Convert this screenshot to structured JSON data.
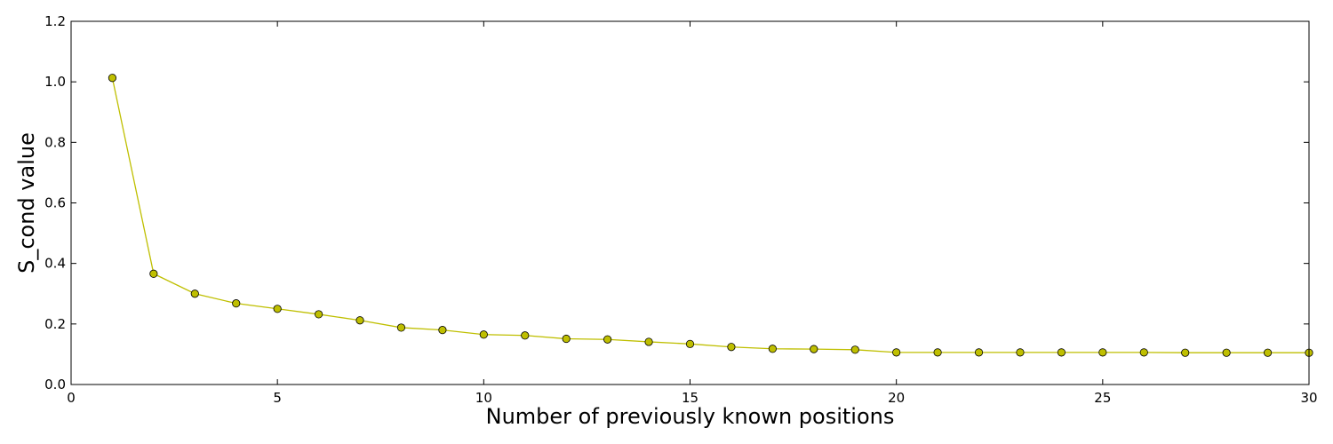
{
  "chart_data": {
    "type": "line",
    "title": "",
    "xlabel": "Number of previously known positions",
    "ylabel": "S_cond value",
    "xlim": [
      0,
      30
    ],
    "ylim": [
      0.0,
      1.2
    ],
    "x_ticks": [
      0,
      5,
      10,
      15,
      20,
      25,
      30
    ],
    "y_ticks": [
      0.0,
      0.2,
      0.4,
      0.6,
      0.8,
      1.0,
      1.2
    ],
    "x_tick_labels": [
      "0",
      "5",
      "10",
      "15",
      "20",
      "25",
      "30"
    ],
    "y_tick_labels": [
      "0.0",
      "0.2",
      "0.4",
      "0.6",
      "0.8",
      "1.0",
      "1.2"
    ],
    "grid": false,
    "line_color": "#bfbf00",
    "marker_color": "#bfbf00",
    "marker_edge_color": "#000000",
    "series": [
      {
        "x": [
          1,
          2,
          3,
          4,
          5,
          6,
          7,
          8,
          9,
          10,
          11,
          12,
          13,
          14,
          15,
          16,
          17,
          18,
          19,
          20,
          21,
          22,
          23,
          24,
          25,
          26,
          27,
          28,
          29,
          30
        ],
        "y": [
          1.013,
          0.366,
          0.3,
          0.268,
          0.25,
          0.232,
          0.212,
          0.188,
          0.18,
          0.165,
          0.162,
          0.151,
          0.149,
          0.141,
          0.134,
          0.124,
          0.118,
          0.117,
          0.115,
          0.106,
          0.106,
          0.106,
          0.106,
          0.106,
          0.106,
          0.106,
          0.105,
          0.105,
          0.105,
          0.105
        ]
      }
    ]
  }
}
